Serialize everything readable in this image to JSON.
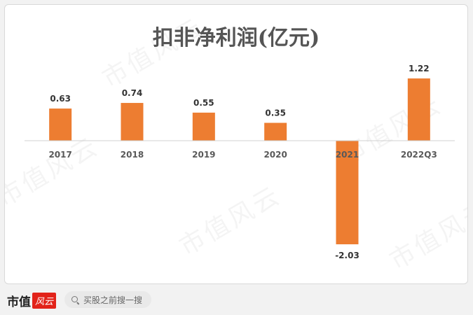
{
  "chart_data": {
    "type": "bar",
    "title": "扣非净利润(亿元)",
    "categories": [
      "2017",
      "2018",
      "2019",
      "2020",
      "2021",
      "2022Q3"
    ],
    "values": [
      0.63,
      0.74,
      0.55,
      0.35,
      -2.03,
      1.22
    ],
    "value_labels": [
      "0.63",
      "0.74",
      "0.55",
      "0.35",
      "-2.03",
      "1.22"
    ],
    "bar_color": "#ed7d31",
    "ylim": [
      -2.03,
      1.22
    ],
    "grid": false,
    "legend": "none"
  },
  "watermark": "市值风云",
  "footer": {
    "logo_text": "市值",
    "logo_badge": "风云",
    "search_placeholder": "买股之前搜一搜"
  }
}
